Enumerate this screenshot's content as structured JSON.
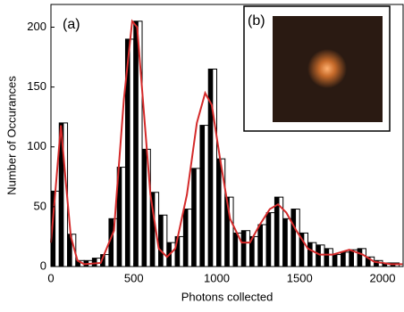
{
  "chart_data": {
    "type": "histogram",
    "xlabel": "Photons collected",
    "ylabel": "Number of Occurances",
    "annotations": [
      "(a)",
      "(b)"
    ],
    "bins": [
      0,
      50,
      100,
      150,
      200,
      250,
      300,
      350,
      400,
      450,
      500,
      550,
      600,
      650,
      700,
      750,
      800,
      850,
      900,
      950,
      1000,
      1050,
      1100,
      1150,
      1200,
      1250,
      1300,
      1350,
      1400,
      1450,
      1500,
      1550,
      1600,
      1650,
      1700,
      1750,
      1800,
      1850,
      1900,
      1950,
      2000,
      2050,
      2100
    ],
    "counts": [
      63,
      120,
      27,
      5,
      5,
      7,
      10,
      40,
      83,
      190,
      205,
      98,
      62,
      43,
      20,
      25,
      48,
      82,
      118,
      165,
      90,
      58,
      28,
      30,
      25,
      35,
      45,
      58,
      40,
      48,
      28,
      20,
      18,
      15,
      10,
      12,
      14,
      15,
      8,
      5,
      3,
      3
    ],
    "color": "#000000",
    "fit": {
      "color": "#d42a2a",
      "x": [
        0,
        25,
        60,
        90,
        120,
        160,
        200,
        300,
        380,
        440,
        490,
        520,
        560,
        600,
        650,
        700,
        750,
        820,
        880,
        930,
        970,
        1020,
        1080,
        1150,
        1200,
        1260,
        1320,
        1370,
        1420,
        1480,
        1550,
        1620,
        1700,
        1800,
        1880,
        1950,
        2050,
        2120
      ],
      "values": [
        20,
        60,
        118,
        70,
        25,
        5,
        2,
        3,
        30,
        140,
        205,
        200,
        130,
        60,
        15,
        8,
        15,
        60,
        120,
        145,
        135,
        90,
        40,
        20,
        20,
        35,
        48,
        52,
        45,
        30,
        15,
        10,
        10,
        14,
        10,
        4,
        2,
        2
      ]
    },
    "xlim": [
      0,
      2124
    ],
    "ylim": [
      0,
      219
    ],
    "xticks": [
      0,
      500,
      1000,
      1500,
      2000
    ],
    "yticks": [
      0,
      50,
      100,
      150,
      200
    ]
  }
}
